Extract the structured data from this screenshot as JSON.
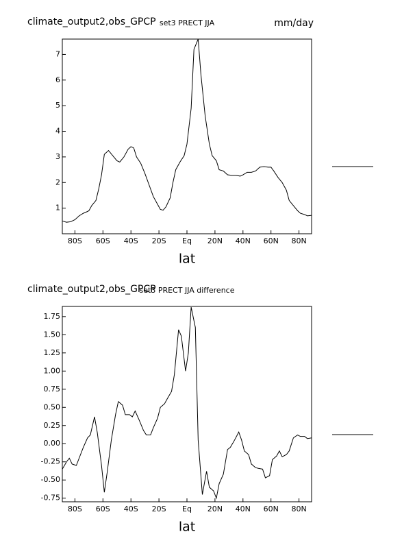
{
  "chart_data": [
    {
      "type": "line",
      "title": "climate_output2,obs_GPCP",
      "subtitle": "set3 PRECT JJA",
      "units": "mm/day",
      "xlabel": "lat",
      "x": [
        -89,
        -86,
        -83,
        -80,
        -77,
        -74,
        -71,
        -70,
        -68,
        -65,
        -63,
        -61,
        -59,
        -56,
        -53,
        -50,
        -48,
        -45,
        -42,
        -40,
        -38,
        -36,
        -33,
        -30,
        -27,
        -24,
        -21,
        -19,
        -17,
        -15,
        -12,
        -10,
        -8,
        -5,
        -2,
        0,
        3,
        5,
        8,
        10,
        13,
        16,
        18,
        21,
        23,
        26,
        29,
        32,
        35,
        38,
        40,
        43,
        46,
        49,
        52,
        55,
        58,
        60,
        62,
        65,
        68,
        71,
        73,
        76,
        79,
        81,
        84,
        86,
        89
      ],
      "series": [
        {
          "color": "#000000",
          "values": [
            0.5,
            0.45,
            0.47,
            0.55,
            0.7,
            0.8,
            0.87,
            0.9,
            1.1,
            1.3,
            1.75,
            2.3,
            3.1,
            3.25,
            3.05,
            2.85,
            2.8,
            3.0,
            3.3,
            3.4,
            3.35,
            3.0,
            2.75,
            2.35,
            1.9,
            1.45,
            1.15,
            0.95,
            0.92,
            1.05,
            1.4,
            2.0,
            2.5,
            2.8,
            3.05,
            3.5,
            4.9,
            7.2,
            7.6,
            6.2,
            4.6,
            3.5,
            3.05,
            2.85,
            2.5,
            2.45,
            2.3,
            2.28,
            2.28,
            2.25,
            2.3,
            2.4,
            2.4,
            2.45,
            2.6,
            2.62,
            2.6,
            2.6,
            2.45,
            2.2,
            2.0,
            1.7,
            1.3,
            1.1,
            0.9,
            0.8,
            0.75,
            0.7,
            0.72
          ]
        }
      ],
      "xlim": [
        -89,
        89
      ],
      "xticks": [
        {
          "value": -80,
          "label": "80S"
        },
        {
          "value": -60,
          "label": "60S"
        },
        {
          "value": -40,
          "label": "40S"
        },
        {
          "value": -20,
          "label": "20S"
        },
        {
          "value": 0,
          "label": "Eq"
        },
        {
          "value": 20,
          "label": "20N"
        },
        {
          "value": 40,
          "label": "40N"
        },
        {
          "value": 60,
          "label": "60N"
        },
        {
          "value": 80,
          "label": "80N"
        }
      ],
      "ylim": [
        0,
        7.6
      ],
      "yticks": [
        1,
        2,
        3,
        4,
        5,
        6,
        7
      ]
    },
    {
      "type": "line",
      "title": "climate_output2,obs_GPCP",
      "subtitle": "set3 PRECT JJA difference",
      "xlabel": "lat",
      "x": [
        -89,
        -86,
        -84,
        -82,
        -79,
        -76,
        -74,
        -71,
        -69,
        -66,
        -64,
        -61,
        -59,
        -57,
        -54,
        -51,
        -49,
        -46,
        -44,
        -41,
        -39,
        -37,
        -34,
        -31,
        -29,
        -26,
        -24,
        -21,
        -19,
        -16,
        -14,
        -11,
        -9,
        -6,
        -4,
        -1,
        1,
        3,
        6,
        8,
        11,
        14,
        16,
        19,
        21,
        23,
        26,
        29,
        31,
        34,
        37,
        39,
        41,
        44,
        46,
        49,
        51,
        54,
        56,
        59,
        61,
        64,
        66,
        68,
        71,
        73,
        76,
        79,
        81,
        84,
        86,
        89
      ],
      "series": [
        {
          "color": "#000000",
          "values": [
            -0.35,
            -0.25,
            -0.2,
            -0.28,
            -0.3,
            -0.15,
            -0.05,
            0.08,
            0.12,
            0.37,
            0.15,
            -0.3,
            -0.67,
            -0.4,
            0.05,
            0.4,
            0.58,
            0.53,
            0.4,
            0.4,
            0.37,
            0.45,
            0.32,
            0.18,
            0.12,
            0.12,
            0.22,
            0.35,
            0.5,
            0.55,
            0.62,
            0.72,
            0.95,
            1.57,
            1.48,
            1.0,
            1.25,
            1.88,
            1.6,
            0.05,
            -0.7,
            -0.38,
            -0.6,
            -0.65,
            -0.75,
            -0.55,
            -0.42,
            -0.08,
            -0.05,
            0.05,
            0.16,
            0.05,
            -0.1,
            -0.15,
            -0.28,
            -0.33,
            -0.34,
            -0.35,
            -0.47,
            -0.44,
            -0.22,
            -0.17,
            -0.1,
            -0.18,
            -0.15,
            -0.1,
            0.08,
            0.12,
            0.1,
            0.1,
            0.07,
            0.08
          ]
        }
      ],
      "xlim": [
        -89,
        89
      ],
      "xticks": [
        {
          "value": -80,
          "label": "80S"
        },
        {
          "value": -60,
          "label": "60S"
        },
        {
          "value": -40,
          "label": "40S"
        },
        {
          "value": -20,
          "label": "20S"
        },
        {
          "value": 0,
          "label": "Eq"
        },
        {
          "value": 20,
          "label": "20N"
        },
        {
          "value": 40,
          "label": "40N"
        },
        {
          "value": 60,
          "label": "60N"
        },
        {
          "value": 80,
          "label": "80N"
        }
      ],
      "ylim": [
        -0.8,
        1.89
      ],
      "yticks": [
        {
          "value": -0.75,
          "label": "-0.75"
        },
        {
          "value": -0.5,
          "label": "-0.50"
        },
        {
          "value": -0.25,
          "label": "-0.25"
        },
        {
          "value": 0,
          "label": "0.00"
        },
        {
          "value": 0.25,
          "label": "0.25"
        },
        {
          "value": 0.5,
          "label": "0.50"
        },
        {
          "value": 0.75,
          "label": "0.75"
        },
        {
          "value": 1,
          "label": "1.00"
        },
        {
          "value": 1.25,
          "label": "1.25"
        },
        {
          "value": 1.5,
          "label": "1.50"
        },
        {
          "value": 1.75,
          "label": "1.75"
        }
      ]
    }
  ]
}
